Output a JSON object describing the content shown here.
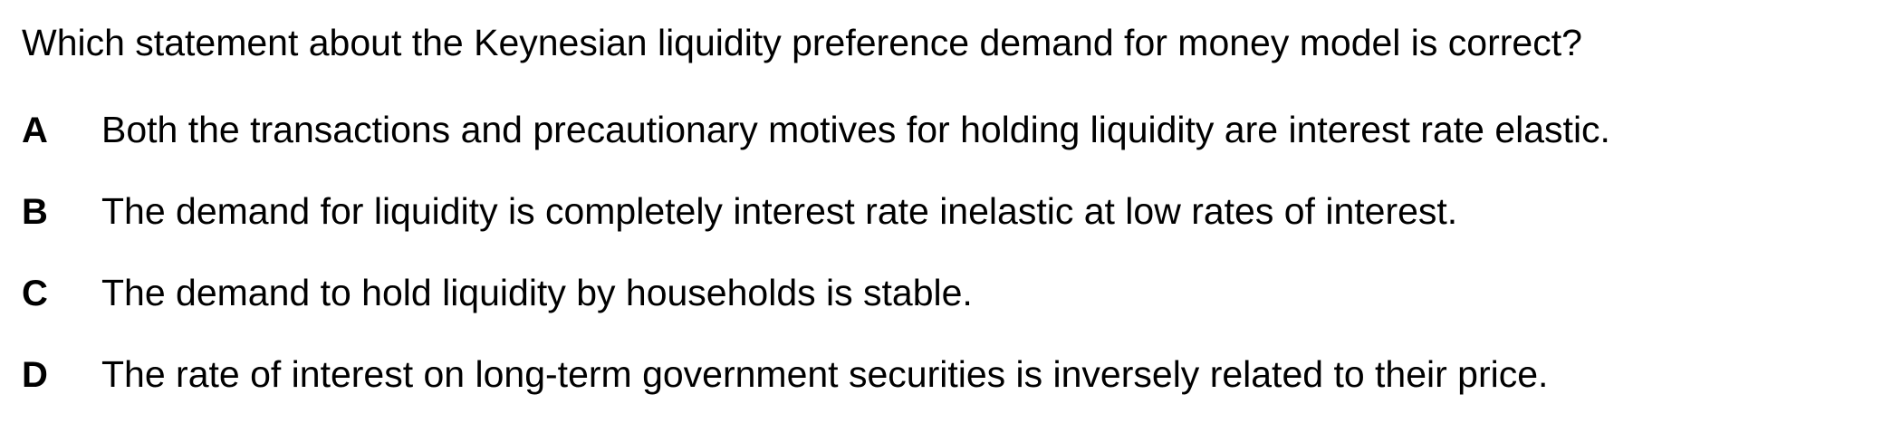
{
  "question": {
    "text": "Which statement about the Keynesian liquidity preference demand for money model is correct?"
  },
  "options": [
    {
      "letter": "A",
      "text": "Both the transactions and precautionary motives for holding liquidity are interest rate elastic."
    },
    {
      "letter": "B",
      "text": "The demand for liquidity is completely interest rate inelastic at low rates of interest."
    },
    {
      "letter": "C",
      "text": "The demand to hold liquidity by households is stable."
    },
    {
      "letter": "D",
      "text": "The rate of interest on long-term government securities is inversely related to their price."
    }
  ]
}
